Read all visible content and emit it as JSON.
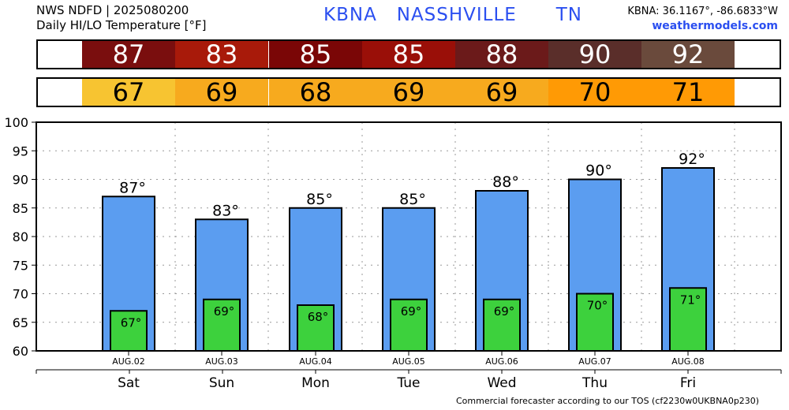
{
  "header": {
    "line1": "NWS NDFD | 2025080200",
    "line2": "Daily HI/LO Temperature [°F]",
    "station_title": "KBNA   NASSHVILLE      TN",
    "coords": "KBNA: 36.1167°, -86.6833°W",
    "site": "weathermodels.com"
  },
  "footer": "Commercial forecaster according to our TOS (cf2230w0UKBNA0p230)",
  "colors": {
    "hi_bar": "#5b9df0",
    "lo_bar": "#3dd13d",
    "hi_cells": [
      "#7a0e0e",
      "#a81a0a",
      "#7a0606",
      "#9a0f08",
      "#6b1a1a",
      "#5a2e2a",
      "#6a4a3c"
    ],
    "lo_cells": [
      "#f7c431",
      "#f7aa1e",
      "#f7aa1e",
      "#f7aa1e",
      "#f7aa1e",
      "#ff9a05",
      "#ff9a05"
    ]
  },
  "chart_data": {
    "type": "bar",
    "categories": [
      "Sat",
      "Sun",
      "Mon",
      "Tue",
      "Wed",
      "Thu",
      "Fri"
    ],
    "dates": [
      "AUG.02",
      "AUG.03",
      "AUG.04",
      "AUG.05",
      "AUG.06",
      "AUG.07",
      "AUG.08"
    ],
    "series": [
      {
        "name": "HI",
        "values": [
          87,
          83,
          85,
          85,
          88,
          90,
          92
        ]
      },
      {
        "name": "LO",
        "values": [
          67,
          69,
          68,
          69,
          69,
          70,
          71
        ]
      }
    ],
    "hi_labels": [
      "87°",
      "83°",
      "85°",
      "85°",
      "88°",
      "90°",
      "92°"
    ],
    "lo_labels": [
      "67°",
      "69°",
      "68°",
      "69°",
      "69°",
      "70°",
      "71°"
    ],
    "ylim": [
      60,
      100
    ],
    "yticks": [
      "60",
      "65",
      "70",
      "75",
      "80",
      "85",
      "90",
      "95",
      "100"
    ],
    "grid": true
  }
}
